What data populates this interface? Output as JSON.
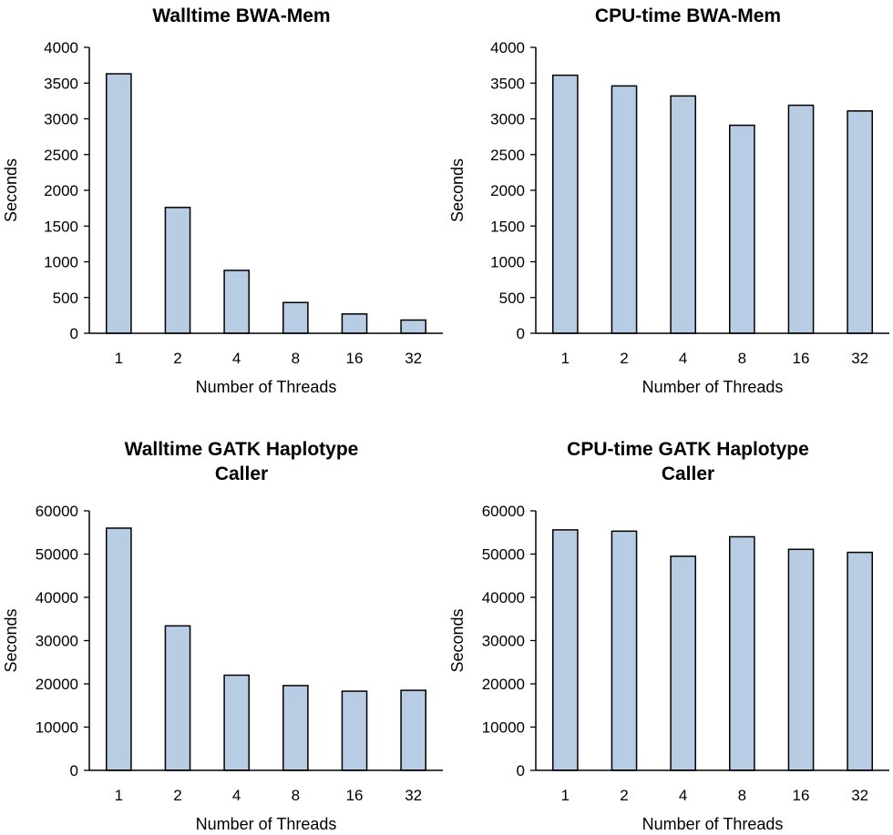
{
  "colors": {
    "bar_fill": "#b8cce4",
    "bar_stroke": "#000000",
    "axis": "#000000"
  },
  "chart_data": [
    {
      "type": "bar",
      "title": "Walltime BWA-Mem",
      "xlabel": "Number of Threads",
      "ylabel": "Seconds",
      "categories": [
        "1",
        "2",
        "4",
        "8",
        "16",
        "32"
      ],
      "values": [
        3630,
        1760,
        880,
        430,
        270,
        185
      ],
      "ylim": [
        0,
        4000
      ],
      "yticks": [
        "0",
        "500",
        "1000",
        "1500",
        "2000",
        "2500",
        "3000",
        "3500",
        "4000"
      ],
      "grid": false
    },
    {
      "type": "bar",
      "title": "CPU-time BWA-Mem",
      "xlabel": "Number of Threads",
      "ylabel": "Seconds",
      "categories": [
        "1",
        "2",
        "4",
        "8",
        "16",
        "32"
      ],
      "values": [
        3610,
        3460,
        3320,
        2910,
        3190,
        3110
      ],
      "ylim": [
        0,
        4000
      ],
      "yticks": [
        "0",
        "500",
        "1000",
        "1500",
        "2000",
        "2500",
        "3000",
        "3500",
        "4000"
      ],
      "grid": false
    },
    {
      "type": "bar",
      "title": "Walltime GATK Haplotype\nCaller",
      "xlabel": "Number of Threads",
      "ylabel": "Seconds",
      "categories": [
        "1",
        "2",
        "4",
        "8",
        "16",
        "32"
      ],
      "values": [
        56000,
        33400,
        22000,
        19600,
        18300,
        18500
      ],
      "ylim": [
        0,
        60000
      ],
      "yticks": [
        "0",
        "10000",
        "20000",
        "30000",
        "40000",
        "50000",
        "60000"
      ],
      "grid": false
    },
    {
      "type": "bar",
      "title": "CPU-time GATK Haplotype\nCaller",
      "xlabel": "Number of Threads",
      "ylabel": "Seconds",
      "categories": [
        "1",
        "2",
        "4",
        "8",
        "16",
        "32"
      ],
      "values": [
        55600,
        55300,
        49500,
        54000,
        51100,
        50400
      ],
      "ylim": [
        0,
        60000
      ],
      "yticks": [
        "0",
        "10000",
        "20000",
        "30000",
        "40000",
        "50000",
        "60000"
      ],
      "grid": false
    }
  ]
}
